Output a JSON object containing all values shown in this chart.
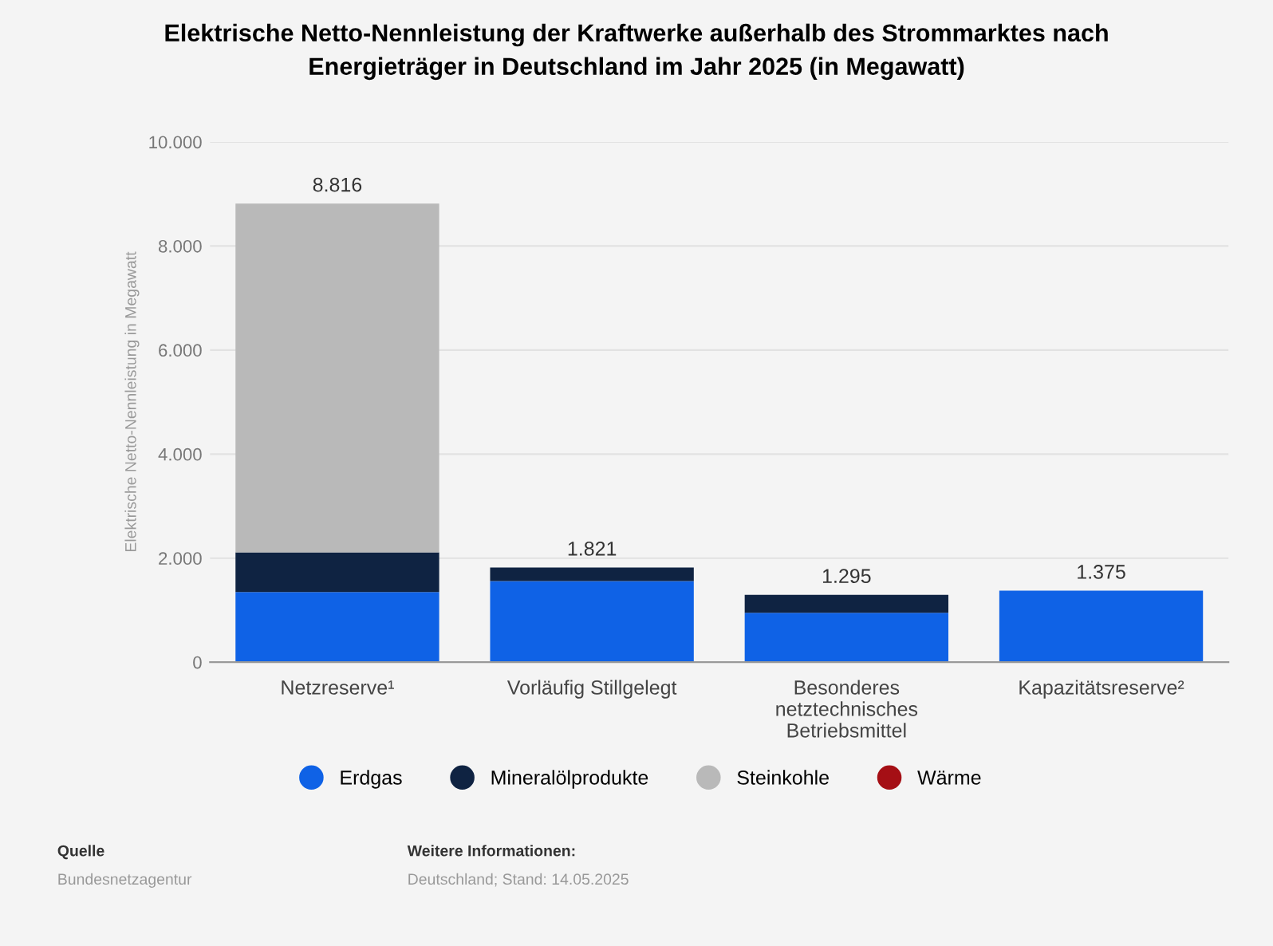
{
  "chart_data": {
    "type": "bar",
    "stacked": true,
    "title": "Elektrische Netto-Nennleistung der Kraftwerke außerhalb des Strommarktes nach\nEnergieträger in Deutschland im Jahr 2025 (in Megawatt)",
    "ylabel": "Elektrische Netto-Nennleistung in Megawatt",
    "categories": [
      "Netzreserve¹",
      "Vorläufig Stillgelegt",
      "Besonderes\nnetztechnisches\nBetriebsmittel",
      "Kapazitätsreserve²"
    ],
    "series": [
      {
        "name": "Erdgas",
        "color": "#0f62e6",
        "values": [
          1350,
          1560,
          950,
          1375
        ]
      },
      {
        "name": "Mineralölprodukte",
        "color": "#0f2342",
        "values": [
          760,
          261,
          345,
          null
        ]
      },
      {
        "name": "Steinkohle",
        "color": "#b9b9b9",
        "values": [
          6706,
          null,
          null,
          null
        ]
      },
      {
        "name": "Wärme",
        "color": "#a50f15",
        "values": [
          null,
          null,
          null,
          null
        ]
      }
    ],
    "totals": [
      "8.816",
      "1.821",
      "1.295",
      "1.375"
    ],
    "ylim": [
      0,
      10000
    ],
    "yticks": [
      {
        "value": 0,
        "label": "0"
      },
      {
        "value": 2000,
        "label": "2.000"
      },
      {
        "value": 4000,
        "label": "4.000"
      },
      {
        "value": 6000,
        "label": "6.000"
      },
      {
        "value": 8000,
        "label": "8.000"
      },
      {
        "value": 10000,
        "label": "10.000"
      }
    ],
    "grid": "y",
    "legend": "bottom",
    "annotations": [
      "Quelle",
      "Bundesnetzagentur",
      "Weitere Informationen:",
      "Deutschland; Stand: 14.05.2025"
    ]
  }
}
